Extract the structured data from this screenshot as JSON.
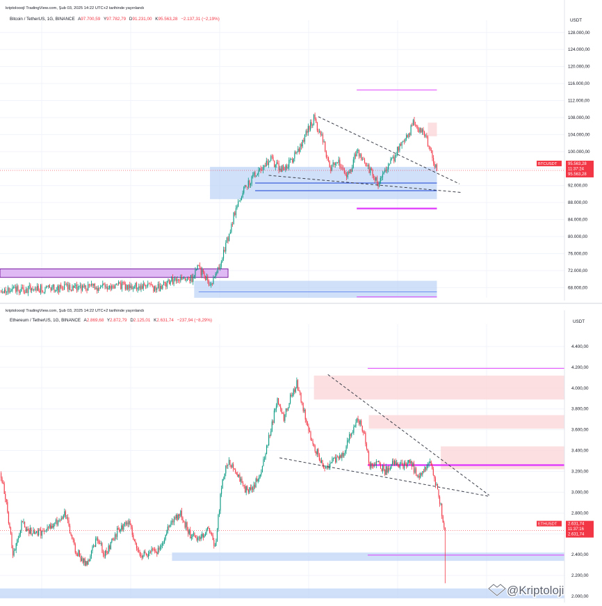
{
  "colors": {
    "up": "#089981",
    "down": "#f23645",
    "zone_blue": "#bcd3f7",
    "zone_red": "#fbd4d6",
    "line_magenta": "#e040fb",
    "line_blue": "#2a4fd8",
    "zone_purple": "#d7a7f0"
  },
  "watermark": {
    "icon": "handshake-logo-icon",
    "text": "@Kriptoloji"
  },
  "chart_data": [
    {
      "type": "candlestick",
      "header": "kriptolooojl TradingView.com, Şub 03, 2025 14:22 UTC+2 tarihinde yayınlandı",
      "title": "Bitcoin / TetherUS, 1G, BINANCE",
      "ohlc": {
        "o_label": "A",
        "o": "97.700,59",
        "h_label": "Y",
        "h": "97.782,79",
        "l_label": "D",
        "l": "91.231,00",
        "c_label": "K",
        "c": "95.563,28",
        "change": "−2.137,31 (−2,19%)"
      },
      "currency": "USDT",
      "yticks": [
        "128.000,00",
        "124.000,00",
        "120.000,00",
        "116.000,00",
        "112.000,00",
        "108.000,00",
        "104.000,00",
        "100.000,00",
        "96.000,00",
        "92.000,00",
        "88.000,00",
        "84.000,00",
        "80.000,00",
        "76.000,00",
        "72.000,00",
        "68.000,00"
      ],
      "ylim": [
        65600,
        129600
      ],
      "price_label": {
        "symbol": "BTCUSDT",
        "price": "95.563,28",
        "time": "11:37:24",
        "price2": "95.563,28",
        "value": 95563
      },
      "anchors": [
        [
          0,
          67500
        ],
        [
          50,
          67800
        ],
        [
          80,
          68100
        ],
        [
          110,
          68400
        ],
        [
          120,
          68200
        ],
        [
          140,
          67900
        ],
        [
          150,
          69500
        ],
        [
          170,
          70100
        ],
        [
          175,
          72800
        ],
        [
          180,
          71200
        ],
        [
          186,
          69000
        ],
        [
          190,
          70200
        ],
        [
          194,
          73000
        ],
        [
          198,
          76500
        ],
        [
          203,
          80500
        ],
        [
          208,
          86000
        ],
        [
          212,
          88500
        ],
        [
          216,
          91500
        ],
        [
          224,
          93800
        ],
        [
          232,
          96500
        ],
        [
          240,
          98200
        ],
        [
          248,
          95600
        ],
        [
          254,
          96800
        ],
        [
          262,
          99300
        ],
        [
          270,
          103500
        ],
        [
          278,
          107800
        ],
        [
          286,
          102500
        ],
        [
          292,
          96200
        ],
        [
          300,
          97600
        ],
        [
          306,
          94000
        ],
        [
          310,
          95300
        ],
        [
          316,
          100200
        ],
        [
          322,
          98200
        ],
        [
          330,
          94300
        ],
        [
          336,
          92400
        ],
        [
          344,
          96500
        ],
        [
          350,
          99000
        ],
        [
          356,
          102500
        ],
        [
          362,
          104000
        ],
        [
          366,
          106500
        ],
        [
          370,
          105000
        ],
        [
          374,
          104500
        ],
        [
          378,
          102800
        ],
        [
          384,
          98000
        ],
        [
          387,
          95563
        ]
      ],
      "zones": [
        {
          "kind": "blue",
          "x0": 186,
          "x1": 387,
          "y0": 88800,
          "y1": 96400
        },
        {
          "kind": "red",
          "x0": 379,
          "x1": 387,
          "y0": 103600,
          "y1": 106800
        },
        {
          "kind": "blue",
          "x0": 172,
          "x1": 387,
          "y0": 65600,
          "y1": 69600
        },
        {
          "kind": "purple",
          "x0": 0,
          "x1": 202,
          "y0": 70400,
          "y1": 72400
        }
      ],
      "hlines": [
        {
          "kind": "magenta_thin",
          "x0": 316,
          "x1": 387,
          "y": 114500
        },
        {
          "kind": "magenta_thick",
          "x0": 316,
          "x1": 387,
          "y": 86600
        },
        {
          "kind": "blue",
          "x0": 226,
          "x1": 387,
          "y": 92600
        },
        {
          "kind": "blue",
          "x0": 226,
          "x1": 387,
          "y": 90800
        },
        {
          "kind": "magenta_thin",
          "x0": 316,
          "x1": 387,
          "y": 65800
        },
        {
          "kind": "blue_thin",
          "x0": 176,
          "x1": 387,
          "y": 67000
        }
      ],
      "trendlines": [
        {
          "x0": 282,
          "y0": 108200,
          "x1": 407,
          "y1": 92400
        },
        {
          "x0": 238,
          "y0": 94400,
          "x1": 408,
          "y1": 90400
        }
      ],
      "xmax": 500
    },
    {
      "type": "candlestick",
      "header": "kriptolooojl TradingView.com, Şub 03, 2025 14:22 UTC+2 tarihinde yayınlandı",
      "title": "Ethereum / TetherUS, 1G, BINANCE",
      "ohlc": {
        "o_label": "A",
        "o": "2.869,68",
        "h_label": "Y",
        "h": "2.872,79",
        "l_label": "D",
        "l": "2.125,01",
        "c_label": "K",
        "c": "2.631,74",
        "change": "−237,94 (−8,29%)"
      },
      "currency": "USDT",
      "yticks": [
        "4.400,00",
        "4.200,00",
        "4.000,00",
        "3.800,00",
        "3.600,00",
        "3.400,00",
        "3.200,00",
        "3.000,00",
        "2.800,00",
        "2.600,00",
        "2.400,00",
        "2.200,00",
        "2.000,00"
      ],
      "ylim": [
        1980,
        4560
      ],
      "price_label": {
        "symbol": "ETHUSDT",
        "price": "2.631,74",
        "time": "11:37:16",
        "price2": "2.631,74",
        "value": 2631
      },
      "anchors": [
        [
          0,
          3200
        ],
        [
          6,
          2900
        ],
        [
          12,
          2400
        ],
        [
          20,
          2700
        ],
        [
          30,
          2600
        ],
        [
          40,
          2620
        ],
        [
          52,
          2700
        ],
        [
          60,
          2800
        ],
        [
          70,
          2450
        ],
        [
          80,
          2300
        ],
        [
          90,
          2550
        ],
        [
          98,
          2400
        ],
        [
          110,
          2650
        ],
        [
          120,
          2700
        ],
        [
          130,
          2400
        ],
        [
          140,
          2420
        ],
        [
          150,
          2450
        ],
        [
          158,
          2700
        ],
        [
          168,
          2800
        ],
        [
          176,
          2600
        ],
        [
          186,
          2550
        ],
        [
          194,
          2650
        ],
        [
          200,
          2450
        ],
        [
          206,
          3050
        ],
        [
          212,
          3300
        ],
        [
          220,
          3200
        ],
        [
          228,
          3020
        ],
        [
          236,
          3050
        ],
        [
          244,
          3250
        ],
        [
          252,
          3600
        ],
        [
          258,
          3900
        ],
        [
          264,
          3700
        ],
        [
          270,
          3900
        ],
        [
          276,
          4050
        ],
        [
          282,
          3800
        ],
        [
          290,
          3500
        ],
        [
          296,
          3350
        ],
        [
          302,
          3250
        ],
        [
          310,
          3300
        ],
        [
          318,
          3350
        ],
        [
          326,
          3550
        ],
        [
          332,
          3700
        ],
        [
          338,
          3600
        ],
        [
          344,
          3250
        ],
        [
          350,
          3300
        ],
        [
          358,
          3200
        ],
        [
          366,
          3300
        ],
        [
          374,
          3250
        ],
        [
          382,
          3300
        ],
        [
          388,
          3150
        ],
        [
          394,
          3200
        ],
        [
          400,
          3300
        ],
        [
          406,
          3050
        ],
        [
          410,
          2860
        ],
        [
          414,
          2631
        ]
      ],
      "spike": {
        "x": 414,
        "low": 2125
      },
      "zones": [
        {
          "kind": "red",
          "x0": 292,
          "x1": 525,
          "y0": 3890,
          "y1": 4120
        },
        {
          "kind": "red",
          "x0": 343,
          "x1": 525,
          "y0": 3610,
          "y1": 3740
        },
        {
          "kind": "red",
          "x0": 410,
          "x1": 525,
          "y0": 3220,
          "y1": 3440
        },
        {
          "kind": "blue",
          "x0": 160,
          "x1": 525,
          "y0": 2340,
          "y1": 2420
        },
        {
          "kind": "blue",
          "x0": 0,
          "x1": 525,
          "y0": 1980,
          "y1": 2075
        }
      ],
      "hlines": [
        {
          "kind": "magenta_thin",
          "x0": 342,
          "x1": 525,
          "y": 4190
        },
        {
          "kind": "magenta_thick",
          "x0": 342,
          "x1": 525,
          "y": 3260
        },
        {
          "kind": "magenta_thin",
          "x0": 342,
          "x1": 525,
          "y": 2395
        }
      ],
      "trendlines": [
        {
          "x0": 305,
          "y0": 4130,
          "x1": 455,
          "y1": 2970
        },
        {
          "x0": 260,
          "y0": 3330,
          "x1": 455,
          "y1": 2960
        }
      ],
      "xmax": 525
    }
  ]
}
